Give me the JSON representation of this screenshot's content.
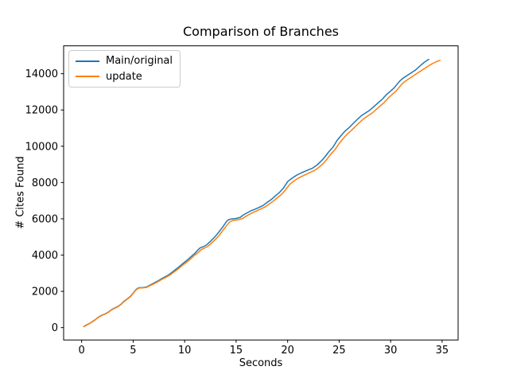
{
  "chart_data": {
    "type": "line",
    "title": "Comparison of Branches",
    "xlabel": "Seconds",
    "ylabel": "# Cites Found",
    "xlim": [
      -1.75,
      36.55
    ],
    "ylim": [
      -682,
      15537
    ],
    "xticks": [
      0,
      5,
      10,
      15,
      20,
      25,
      30,
      35
    ],
    "yticks": [
      0,
      2000,
      4000,
      6000,
      8000,
      10000,
      12000,
      14000
    ],
    "grid": false,
    "legend": {
      "position": "upper-left",
      "entries": [
        "Main/original",
        "update"
      ]
    },
    "series": [
      {
        "name": "Main/original",
        "color": "#1f77b4",
        "points": [
          [
            0.2,
            60
          ],
          [
            0.5,
            150
          ],
          [
            0.8,
            240
          ],
          [
            1.0,
            320
          ],
          [
            1.3,
            430
          ],
          [
            1.5,
            520
          ],
          [
            1.8,
            640
          ],
          [
            2.0,
            690
          ],
          [
            2.3,
            760
          ],
          [
            2.6,
            860
          ],
          [
            2.9,
            990
          ],
          [
            3.2,
            1080
          ],
          [
            3.5,
            1160
          ],
          [
            3.8,
            1280
          ],
          [
            4.1,
            1450
          ],
          [
            4.4,
            1570
          ],
          [
            4.7,
            1700
          ],
          [
            5.0,
            1900
          ],
          [
            5.2,
            2050
          ],
          [
            5.4,
            2160
          ],
          [
            5.6,
            2200
          ],
          [
            6.0,
            2210
          ],
          [
            6.3,
            2240
          ],
          [
            6.6,
            2330
          ],
          [
            7.0,
            2450
          ],
          [
            7.4,
            2570
          ],
          [
            7.8,
            2710
          ],
          [
            8.2,
            2830
          ],
          [
            8.6,
            2970
          ],
          [
            9.0,
            3150
          ],
          [
            9.4,
            3330
          ],
          [
            9.8,
            3520
          ],
          [
            10.2,
            3700
          ],
          [
            10.6,
            3900
          ],
          [
            11.0,
            4100
          ],
          [
            11.3,
            4290
          ],
          [
            11.5,
            4400
          ],
          [
            11.8,
            4460
          ],
          [
            12.1,
            4550
          ],
          [
            12.5,
            4750
          ],
          [
            12.9,
            4980
          ],
          [
            13.3,
            5250
          ],
          [
            13.7,
            5550
          ],
          [
            14.0,
            5800
          ],
          [
            14.2,
            5930
          ],
          [
            14.5,
            5990
          ],
          [
            15.0,
            6020
          ],
          [
            15.4,
            6080
          ],
          [
            15.7,
            6210
          ],
          [
            16.0,
            6310
          ],
          [
            16.4,
            6430
          ],
          [
            16.8,
            6520
          ],
          [
            17.2,
            6620
          ],
          [
            17.6,
            6730
          ],
          [
            18.0,
            6900
          ],
          [
            18.4,
            7060
          ],
          [
            18.8,
            7260
          ],
          [
            19.2,
            7450
          ],
          [
            19.6,
            7700
          ],
          [
            20.0,
            8050
          ],
          [
            20.4,
            8230
          ],
          [
            20.8,
            8380
          ],
          [
            21.2,
            8500
          ],
          [
            21.6,
            8600
          ],
          [
            22.0,
            8700
          ],
          [
            22.4,
            8790
          ],
          [
            22.8,
            8940
          ],
          [
            23.2,
            9150
          ],
          [
            23.6,
            9400
          ],
          [
            24.0,
            9700
          ],
          [
            24.4,
            9950
          ],
          [
            24.8,
            10320
          ],
          [
            25.2,
            10600
          ],
          [
            25.6,
            10850
          ],
          [
            26.0,
            11050
          ],
          [
            26.4,
            11280
          ],
          [
            26.8,
            11500
          ],
          [
            27.2,
            11700
          ],
          [
            27.6,
            11850
          ],
          [
            28.0,
            12000
          ],
          [
            28.4,
            12200
          ],
          [
            28.8,
            12400
          ],
          [
            29.2,
            12600
          ],
          [
            29.6,
            12850
          ],
          [
            30.0,
            13050
          ],
          [
            30.3,
            13200
          ],
          [
            30.6,
            13400
          ],
          [
            30.9,
            13600
          ],
          [
            31.2,
            13750
          ],
          [
            31.6,
            13900
          ],
          [
            32.0,
            14050
          ],
          [
            32.4,
            14200
          ],
          [
            32.8,
            14400
          ],
          [
            33.2,
            14600
          ],
          [
            33.5,
            14720
          ],
          [
            33.7,
            14790
          ]
        ]
      },
      {
        "name": "update",
        "color": "#ff7f0e",
        "points": [
          [
            0.2,
            55
          ],
          [
            0.5,
            140
          ],
          [
            0.8,
            230
          ],
          [
            1.0,
            310
          ],
          [
            1.3,
            420
          ],
          [
            1.5,
            510
          ],
          [
            1.8,
            630
          ],
          [
            2.0,
            680
          ],
          [
            2.3,
            750
          ],
          [
            2.6,
            845
          ],
          [
            2.9,
            975
          ],
          [
            3.2,
            1065
          ],
          [
            3.5,
            1145
          ],
          [
            3.8,
            1265
          ],
          [
            4.1,
            1430
          ],
          [
            4.4,
            1555
          ],
          [
            4.7,
            1685
          ],
          [
            5.0,
            1880
          ],
          [
            5.2,
            2030
          ],
          [
            5.4,
            2140
          ],
          [
            5.6,
            2185
          ],
          [
            6.0,
            2195
          ],
          [
            6.3,
            2220
          ],
          [
            6.6,
            2300
          ],
          [
            7.0,
            2410
          ],
          [
            7.4,
            2530
          ],
          [
            7.8,
            2660
          ],
          [
            8.2,
            2780
          ],
          [
            8.6,
            2910
          ],
          [
            9.0,
            3080
          ],
          [
            9.4,
            3250
          ],
          [
            9.8,
            3440
          ],
          [
            10.2,
            3610
          ],
          [
            10.6,
            3800
          ],
          [
            11.0,
            4000
          ],
          [
            11.4,
            4190
          ],
          [
            11.6,
            4300
          ],
          [
            11.9,
            4380
          ],
          [
            12.2,
            4460
          ],
          [
            12.6,
            4650
          ],
          [
            13.0,
            4870
          ],
          [
            13.4,
            5120
          ],
          [
            13.8,
            5420
          ],
          [
            14.1,
            5650
          ],
          [
            14.4,
            5830
          ],
          [
            14.7,
            5910
          ],
          [
            15.2,
            5950
          ],
          [
            15.6,
            6010
          ],
          [
            15.9,
            6120
          ],
          [
            16.2,
            6220
          ],
          [
            16.6,
            6340
          ],
          [
            17.0,
            6440
          ],
          [
            17.4,
            6540
          ],
          [
            17.8,
            6650
          ],
          [
            18.2,
            6810
          ],
          [
            18.6,
            6970
          ],
          [
            19.0,
            7160
          ],
          [
            19.4,
            7350
          ],
          [
            19.8,
            7600
          ],
          [
            20.2,
            7900
          ],
          [
            20.6,
            8080
          ],
          [
            21.0,
            8230
          ],
          [
            21.4,
            8350
          ],
          [
            21.8,
            8450
          ],
          [
            22.2,
            8560
          ],
          [
            22.6,
            8660
          ],
          [
            23.0,
            8820
          ],
          [
            23.4,
            9020
          ],
          [
            23.8,
            9270
          ],
          [
            24.2,
            9570
          ],
          [
            24.6,
            9820
          ],
          [
            25.0,
            10150
          ],
          [
            25.4,
            10430
          ],
          [
            25.8,
            10680
          ],
          [
            26.2,
            10880
          ],
          [
            26.6,
            11100
          ],
          [
            27.0,
            11320
          ],
          [
            27.4,
            11520
          ],
          [
            27.8,
            11680
          ],
          [
            28.2,
            11830
          ],
          [
            28.6,
            12030
          ],
          [
            29.0,
            12230
          ],
          [
            29.4,
            12430
          ],
          [
            29.8,
            12680
          ],
          [
            30.2,
            12880
          ],
          [
            30.5,
            13030
          ],
          [
            30.8,
            13230
          ],
          [
            31.1,
            13430
          ],
          [
            31.4,
            13580
          ],
          [
            31.8,
            13730
          ],
          [
            32.2,
            13880
          ],
          [
            32.6,
            14030
          ],
          [
            33.0,
            14180
          ],
          [
            33.4,
            14330
          ],
          [
            33.8,
            14480
          ],
          [
            34.2,
            14600
          ],
          [
            34.5,
            14680
          ],
          [
            34.8,
            14740
          ]
        ]
      }
    ]
  }
}
